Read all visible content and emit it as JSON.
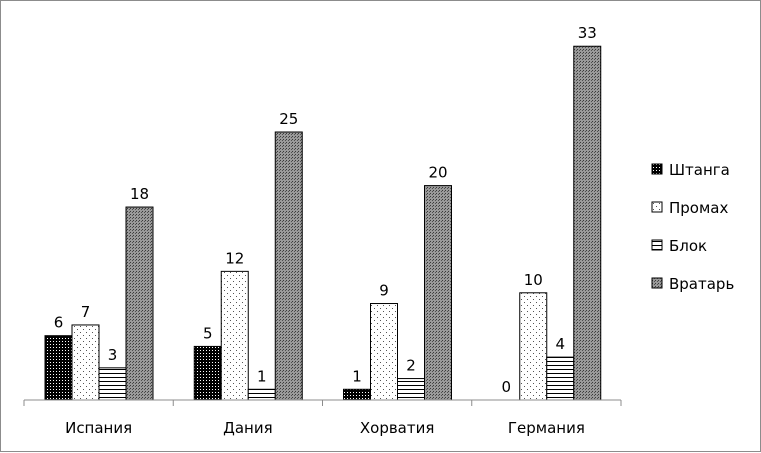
{
  "chart_data": {
    "type": "bar",
    "title": "",
    "xlabel": "",
    "ylabel": "",
    "ylim": [
      0,
      33
    ],
    "grid": false,
    "legend_position": "right",
    "categories": [
      "Испания",
      "Дания",
      "Хорватия",
      "Германия"
    ],
    "series": [
      {
        "name": "Штанга",
        "values": [
          6,
          5,
          1,
          0
        ],
        "pattern": "dense-dots",
        "color": "#000000"
      },
      {
        "name": "Промах",
        "values": [
          7,
          12,
          9,
          10
        ],
        "pattern": "sparse-dots",
        "color": "#ffffff"
      },
      {
        "name": "Блок",
        "values": [
          3,
          1,
          2,
          4
        ],
        "pattern": "horizontal-lines",
        "color": "#ffffff"
      },
      {
        "name": "Вратарь",
        "values": [
          18,
          25,
          20,
          33
        ],
        "pattern": "medium-dots",
        "color": "#808080"
      }
    ]
  }
}
